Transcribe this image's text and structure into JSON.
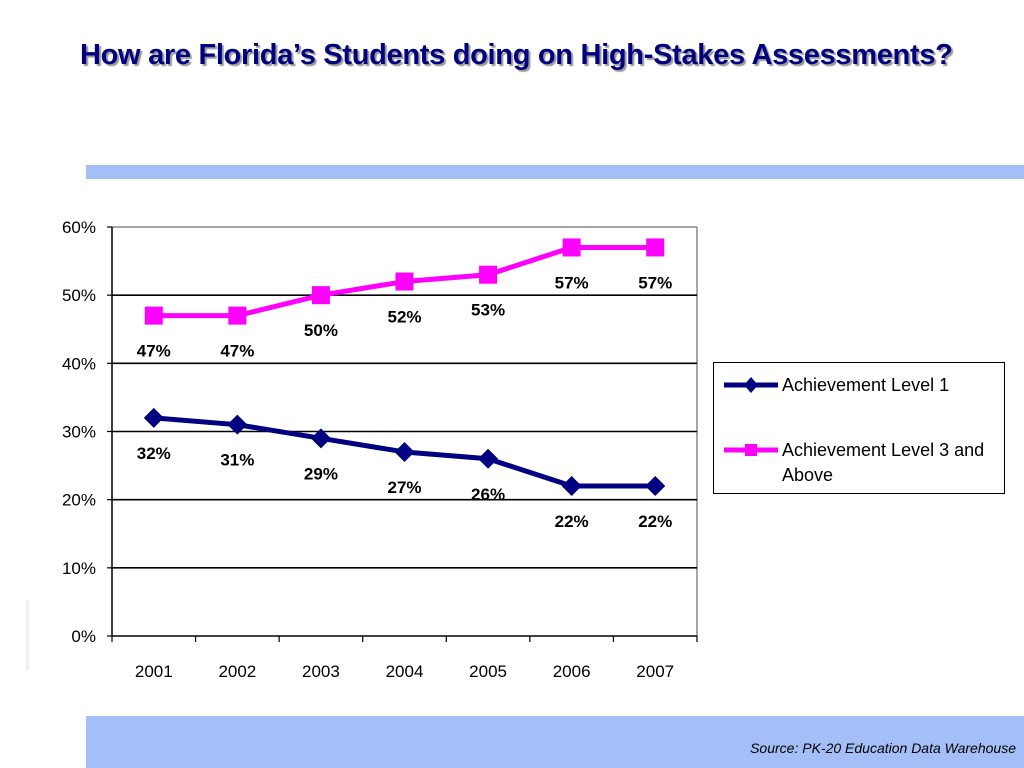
{
  "slide": {
    "title": "How are Florida’s Students doing on High-Stakes Assessments?",
    "source": "Source:  PK-20 Education Data Warehouse"
  },
  "colors": {
    "title": "#000080",
    "band": "#a4bff7",
    "series_level1": "#000080",
    "series_level3": "#ff00ff"
  },
  "chart_data": {
    "type": "line",
    "title": "",
    "xlabel": "",
    "ylabel": "",
    "categories": [
      "2001",
      "2002",
      "2003",
      "2004",
      "2005",
      "2006",
      "2007"
    ],
    "ylim": [
      0,
      0.6
    ],
    "yticks": [
      0,
      0.1,
      0.2,
      0.3,
      0.4,
      0.5,
      0.6
    ],
    "ytick_labels": [
      "0%",
      "10%",
      "20%",
      "30%",
      "40%",
      "50%",
      "60%"
    ],
    "grid": true,
    "legend_position": "right",
    "series": [
      {
        "name": "Achievement Level 1",
        "marker": "diamond",
        "color": "#000080",
        "values": [
          0.32,
          0.31,
          0.29,
          0.27,
          0.26,
          0.22,
          0.22
        ],
        "labels": [
          "32%",
          "31%",
          "29%",
          "27%",
          "26%",
          "22%",
          "22%"
        ]
      },
      {
        "name": "Achievement Level 3 and Above",
        "marker": "square",
        "color": "#ff00ff",
        "values": [
          0.47,
          0.47,
          0.5,
          0.52,
          0.53,
          0.57,
          0.57
        ],
        "labels": [
          "47%",
          "47%",
          "50%",
          "52%",
          "53%",
          "57%",
          "57%"
        ]
      }
    ]
  }
}
